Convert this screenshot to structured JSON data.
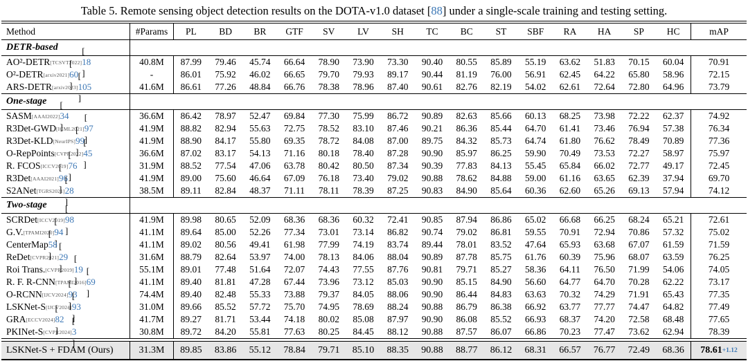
{
  "caption": {
    "part1": "Table 5.  Remote sensing object detection results on the DOTA-v1.0 dataset [",
    "cite": "88",
    "part2": "] under a single-scale training and testing setting."
  },
  "columns": [
    "Method",
    "#Params",
    "PL",
    "BD",
    "BR",
    "GTF",
    "SV",
    "LV",
    "SH",
    "TC",
    "BC",
    "ST",
    "SBF",
    "RA",
    "HA",
    "SP",
    "HC",
    "mAP"
  ],
  "punct": {
    "open": "[",
    "close": "]",
    "space": " "
  },
  "colors": {
    "cite_blue": "#3c77b5",
    "highlight_bg": "#e6e6e6",
    "venue_gray": "#555555"
  },
  "sections": [
    {
      "label": "DETR-based",
      "rows": [
        {
          "method": "AO²-DETR",
          "venue": "[TCSVT2022]",
          "cite": "18",
          "params": "40.8M",
          "values": [
            "87.99",
            "79.46",
            "45.74",
            "66.64",
            "78.90",
            "73.90",
            "73.30",
            "90.40",
            "80.55",
            "85.89",
            "55.19",
            "63.62",
            "51.83",
            "70.15",
            "60.04"
          ],
          "map": "70.91"
        },
        {
          "method": "O²-DETR",
          "venue": "[arxiv2021]",
          "cite": "60",
          "params": "-",
          "values": [
            "86.01",
            "75.92",
            "46.02",
            "66.65",
            "79.70",
            "79.93",
            "89.17",
            "90.44",
            "81.19",
            "76.00",
            "56.91",
            "62.45",
            "64.22",
            "65.80",
            "58.96"
          ],
          "map": "72.15"
        },
        {
          "method": "ARS-DETR",
          "venue": "[arxiv2023]",
          "cite": "105",
          "params": "41.6M",
          "values": [
            "86.61",
            "77.26",
            "48.84",
            "66.76",
            "78.38",
            "78.96",
            "87.40",
            "90.61",
            "82.76",
            "82.19",
            "54.02",
            "62.61",
            "72.64",
            "72.80",
            "64.96"
          ],
          "map": "73.79"
        }
      ]
    },
    {
      "label": "One-stage",
      "rows": [
        {
          "method": "SASM",
          "venue": "[AAAI2022]",
          "cite": "34",
          "params": "36.6M",
          "values": [
            "86.42",
            "78.97",
            "52.47",
            "69.84",
            "77.30",
            "75.99",
            "86.72",
            "90.89",
            "82.63",
            "85.66",
            "60.13",
            "68.25",
            "73.98",
            "72.22",
            "62.37"
          ],
          "map": "74.92"
        },
        {
          "method": "R3Det-GWD",
          "venue": "[ICML2021]",
          "cite": "97",
          "params": "41.9M",
          "values": [
            "88.82",
            "82.94",
            "55.63",
            "72.75",
            "78.52",
            "83.10",
            "87.46",
            "90.21",
            "86.36",
            "85.44",
            "64.70",
            "61.41",
            "73.46",
            "76.94",
            "57.38"
          ],
          "map": "76.34"
        },
        {
          "method": "R3Det-KLD",
          "venue": "[NeurIPS]",
          "cite": "99",
          "params": "41.9M",
          "values": [
            "88.90",
            "84.17",
            "55.80",
            "69.35",
            "78.72",
            "84.08",
            "87.00",
            "89.75",
            "84.32",
            "85.73",
            "64.74",
            "61.80",
            "76.62",
            "78.49",
            "70.89"
          ],
          "map": "77.36"
        },
        {
          "method": "O-RepPoints",
          "venue": "[CVPR2022]",
          "cite": "45",
          "params": "36.6M",
          "values": [
            "87.02",
            "83.17",
            "54.13",
            "71.16",
            "80.18",
            "78.40",
            "87.28",
            "90.90",
            "85.97",
            "86.25",
            "59.90",
            "70.49",
            "73.53",
            "72.27",
            "58.97"
          ],
          "map": "75.97"
        },
        {
          "method": "R. FCOS",
          "venue": "[ICCV2019]",
          "cite": "76",
          "params": "31.9M",
          "values": [
            "88.52",
            "77.54",
            "47.06",
            "63.78",
            "80.42",
            "80.50",
            "87.34",
            "90.39",
            "77.83",
            "84.13",
            "55.45",
            "65.84",
            "66.02",
            "72.77",
            "49.17"
          ],
          "map": "72.45"
        },
        {
          "method": "R3Det",
          "venue": "[AAAI2021]",
          "cite": "96",
          "params": "41.9M",
          "values": [
            "89.00",
            "75.60",
            "46.64",
            "67.09",
            "76.18",
            "73.40",
            "79.02",
            "90.88",
            "78.62",
            "84.88",
            "59.00",
            "61.16",
            "63.65",
            "62.39",
            "37.94"
          ],
          "map": "69.70"
        },
        {
          "method": "S2ANet",
          "venue": "[TGRS2021]",
          "cite": "28",
          "params": "38.5M",
          "values": [
            "89.11",
            "82.84",
            "48.37",
            "71.11",
            "78.11",
            "78.39",
            "87.25",
            "90.83",
            "84.90",
            "85.64",
            "60.36",
            "62.60",
            "65.26",
            "69.13",
            "57.94"
          ],
          "map": "74.12"
        }
      ]
    },
    {
      "label": "Two-stage",
      "rows": [
        {
          "method": "SCRDet",
          "venue": "[ICCV2019]",
          "cite": "98",
          "params": "41.9M",
          "values": [
            "89.98",
            "80.65",
            "52.09",
            "68.36",
            "68.36",
            "60.32",
            "72.41",
            "90.85",
            "87.94",
            "86.86",
            "65.02",
            "66.68",
            "66.25",
            "68.24",
            "65.21"
          ],
          "map": "72.61"
        },
        {
          "method": "G.V.",
          "venue": "[TPAMI2020]",
          "cite": "94",
          "params": "41.1M",
          "values": [
            "89.64",
            "85.00",
            "52.26",
            "77.34",
            "73.01",
            "73.14",
            "86.82",
            "90.74",
            "79.02",
            "86.81",
            "59.55",
            "70.91",
            "72.94",
            "70.86",
            "57.32"
          ],
          "map": "75.02"
        },
        {
          "method": "CenterMap",
          "venue": null,
          "cite": "58",
          "params": "41.1M",
          "values": [
            "89.02",
            "80.56",
            "49.41",
            "61.98",
            "77.99",
            "74.19",
            "83.74",
            "89.44",
            "78.01",
            "83.52",
            "47.64",
            "65.93",
            "63.68",
            "67.07",
            "61.59"
          ],
          "map": "71.59"
        },
        {
          "method": "ReDet",
          "venue": "[CVPR2021]",
          "cite": "29",
          "params": "31.6M",
          "values": [
            "88.79",
            "82.64",
            "53.97",
            "74.00",
            "78.13",
            "84.06",
            "88.04",
            "90.89",
            "87.78",
            "85.75",
            "61.76",
            "60.39",
            "75.96",
            "68.07",
            "63.59"
          ],
          "map": "76.25"
        },
        {
          "method": "Roi Trans.",
          "venue": "[CVPR2019]",
          "cite": "19",
          "params": "55.1M",
          "values": [
            "89.01",
            "77.48",
            "51.64",
            "72.07",
            "74.43",
            "77.55",
            "87.76",
            "90.81",
            "79.71",
            "85.27",
            "58.36",
            "64.11",
            "76.50",
            "71.99",
            "54.06"
          ],
          "map": "74.05"
        },
        {
          "method": "R. F. R-CNN",
          "venue": "[TPAMI2016]",
          "cite": "69",
          "params": "41.1M",
          "values": [
            "89.40",
            "81.81",
            "47.28",
            "67.44",
            "73.96",
            "73.12",
            "85.03",
            "90.90",
            "85.15",
            "84.90",
            "56.60",
            "64.77",
            "64.70",
            "70.28",
            "62.22"
          ],
          "map": "73.17"
        },
        {
          "method": "O-RCNN",
          "venue": "[IJCV2024]",
          "cite": "93",
          "params": "74.4M",
          "values": [
            "89.40",
            "82.48",
            "55.33",
            "73.88",
            "79.37",
            "84.05",
            "88.06",
            "90.90",
            "86.44",
            "84.83",
            "63.63",
            "70.32",
            "74.29",
            "71.91",
            "65.43"
          ],
          "map": "77.35"
        },
        {
          "method": "LSKNet-S",
          "venue": "[IJCV2024]",
          "cite": "93",
          "params": "31.0M",
          "values": [
            "89.66",
            "85.52",
            "57.72",
            "75.70",
            "74.95",
            "78.69",
            "88.24",
            "90.88",
            "86.79",
            "86.38",
            "66.92",
            "63.77",
            "77.77",
            "74.47",
            "64.82"
          ],
          "map": "77.49"
        },
        {
          "method": "GRA",
          "venue": "[ECCV2024]",
          "cite": "82",
          "params": "41.7M",
          "values": [
            "89.27",
            "81.71",
            "53.44",
            "74.18",
            "80.02",
            "85.08",
            "87.97",
            "90.90",
            "86.08",
            "85.52",
            "66.93",
            "68.37",
            "74.20",
            "72.58",
            "68.48"
          ],
          "map": "77.65"
        },
        {
          "method": "PKINet-S",
          "venue": "[CVPR2024]",
          "cite": "3",
          "params": "30.8M",
          "values": [
            "89.72",
            "84.20",
            "55.81",
            "77.63",
            "80.25",
            "84.45",
            "88.12",
            "90.88",
            "87.57",
            "86.07",
            "66.86",
            "70.23",
            "77.47",
            "73.62",
            "62.94"
          ],
          "map": "78.39"
        }
      ]
    }
  ],
  "final_row": {
    "method": "LSKNet-S + FDAM (Ours)",
    "params": "31.3M",
    "values": [
      "89.85",
      "83.86",
      "55.12",
      "78.84",
      "79.71",
      "85.10",
      "88.35",
      "90.88",
      "88.77",
      "86.12",
      "68.31",
      "66.57",
      "76.77",
      "72.49",
      "68.36"
    ],
    "map": "78.61",
    "delta": "+1.12"
  }
}
